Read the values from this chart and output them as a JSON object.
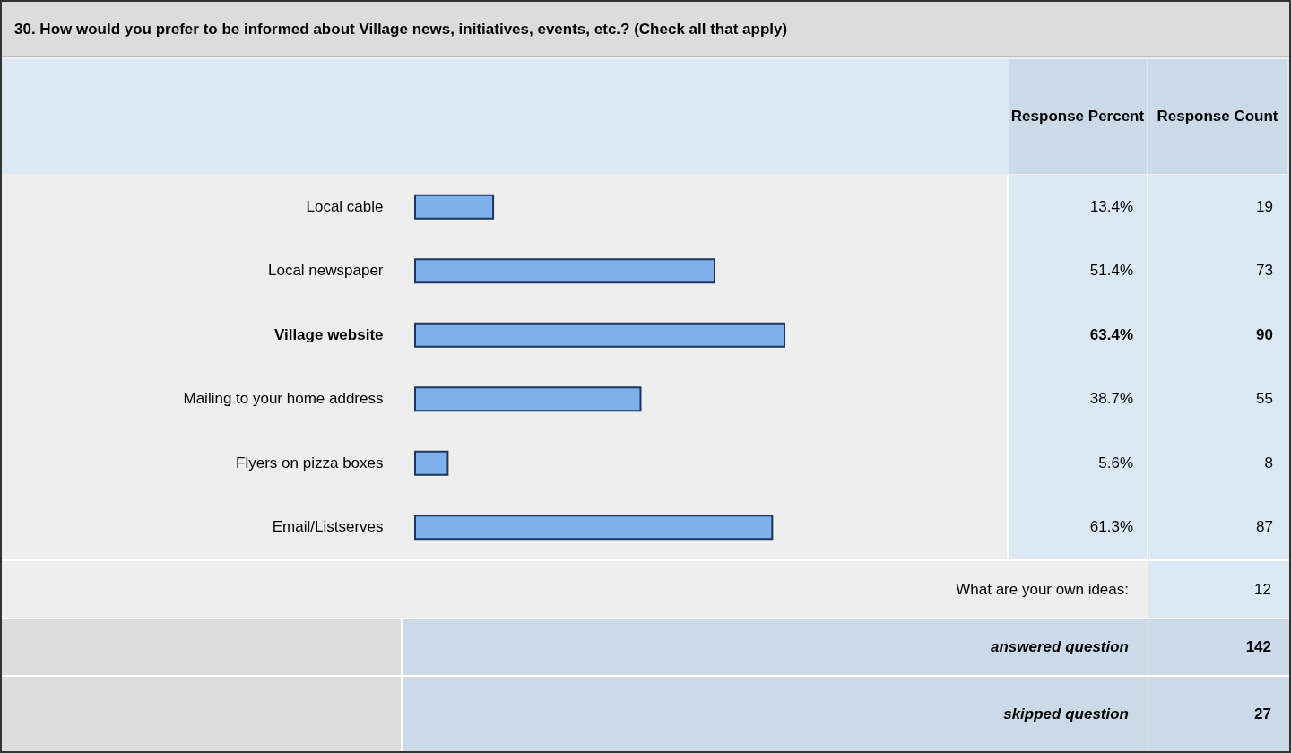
{
  "chart_data": {
    "type": "bar",
    "orientation": "horizontal",
    "title": "30. How would you prefer to be informed about Village news, initiatives, events, etc.? (Check all that apply)",
    "categories": [
      "Local cable",
      "Local newspaper",
      "Village website",
      "Mailing to your home address",
      "Flyers on pizza boxes",
      "Email/Listserves"
    ],
    "values": [
      13.4,
      51.4,
      63.4,
      38.7,
      5.6,
      61.3
    ],
    "value_labels": [
      "13.4%",
      "51.4%",
      "63.4%",
      "38.7%",
      "5.6%",
      "61.3%"
    ],
    "color": "#7eb0ea",
    "tick_labels": "y",
    "annotations": [
      "Response Percent",
      "Response Count",
      "19",
      "73",
      "90",
      "55",
      "8",
      "87",
      "What are your own ideas:",
      "12",
      "answered question",
      "142",
      "skipped question",
      "27"
    ]
  }
}
